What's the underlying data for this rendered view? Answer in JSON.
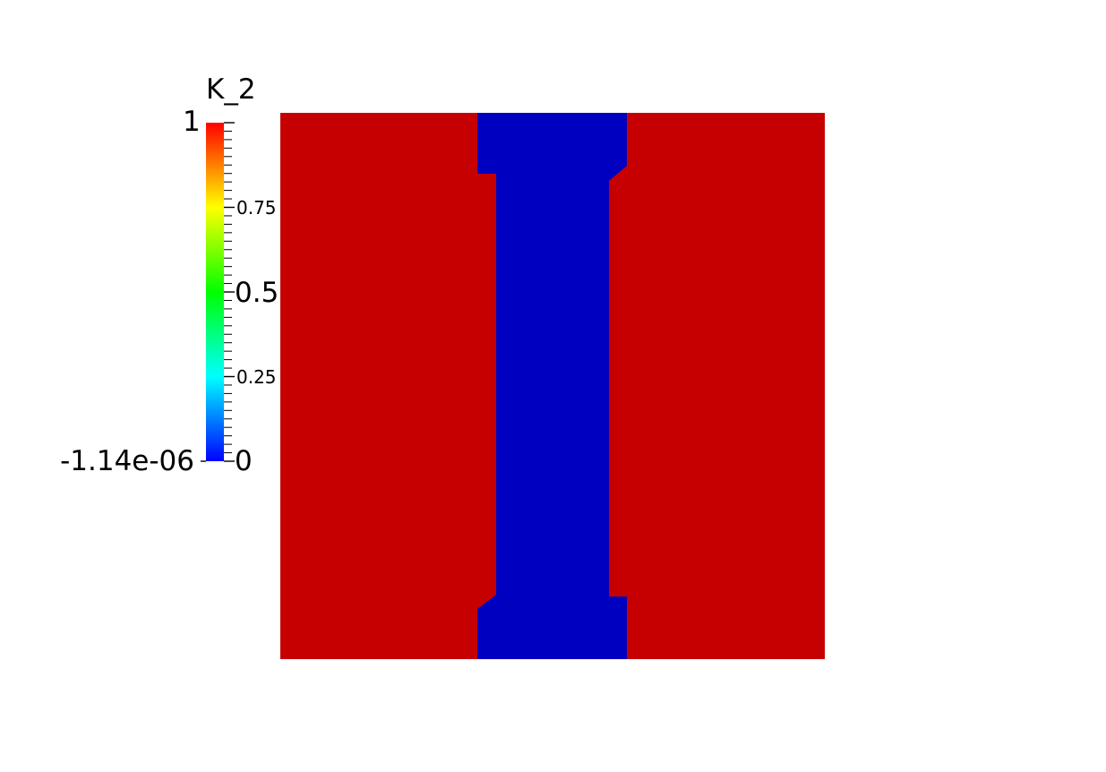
{
  "colorbar": {
    "title": "K_2",
    "range_max_label": "1",
    "range_min_label": "-1.14e-06",
    "tick_labels": [
      "0.75",
      "0.5",
      "0.25",
      "0"
    ],
    "colormap": [
      "#0000ff",
      "#00ffff",
      "#00ff00",
      "#ffff00",
      "#ff0000"
    ]
  },
  "field": {
    "outer_color": "#c60000",
    "inner_color": "#0000c0",
    "edge_gradient": [
      "#c60000",
      "#f08000",
      "#e6e600",
      "#33cc33",
      "#00c8c8",
      "#0050e6",
      "#0000c0"
    ]
  }
}
